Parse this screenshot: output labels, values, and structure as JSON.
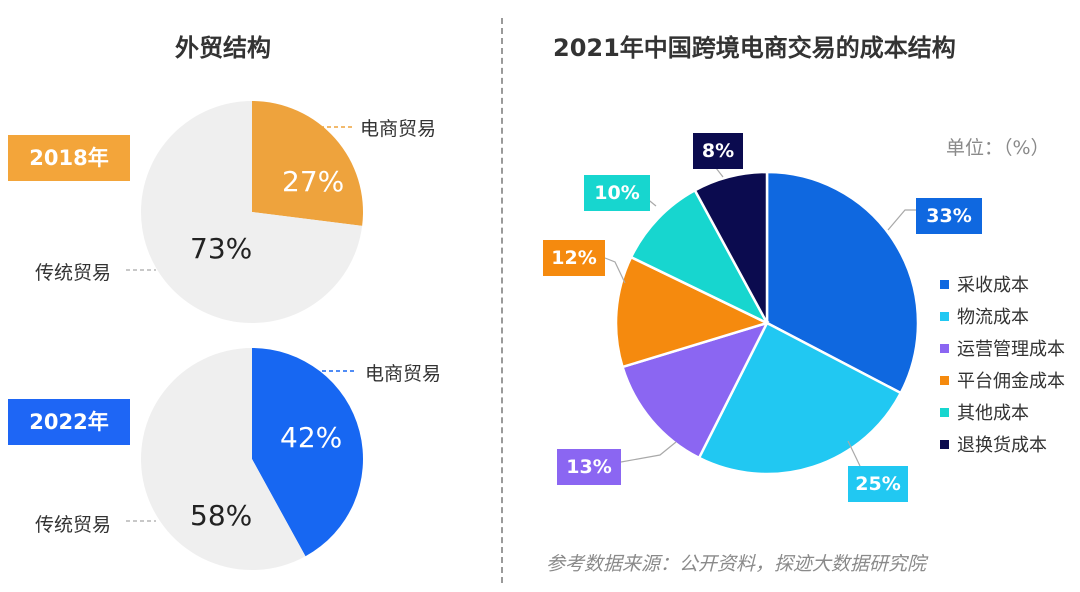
{
  "left": {
    "title": "外贸结构",
    "charts": [
      {
        "year": "2018年",
        "badge_color": "#F3A53A",
        "ecommerce_label": "电商贸易",
        "traditional_label": "传统贸易",
        "ecommerce_pct_label": "27%",
        "traditional_pct_label": "73%",
        "ecommerce_color": "#EEA33D",
        "traditional_color": "#EFEFEF"
      },
      {
        "year": "2022年",
        "badge_color": "#1E66F5",
        "ecommerce_label": "电商贸易",
        "traditional_label": "传统贸易",
        "ecommerce_pct_label": "42%",
        "traditional_pct_label": "58%",
        "ecommerce_color": "#1767F2",
        "traditional_color": "#EFEFEF"
      }
    ]
  },
  "right": {
    "title": "2021年中国跨境电商交易的成本结构",
    "unit": "单位：（%）",
    "source": "参考数据来源：公开资料，探迹大数据研究院"
  },
  "chart_data": [
    {
      "type": "pie",
      "title": "2018年",
      "categories": [
        "电商贸易",
        "传统贸易"
      ],
      "values": [
        27,
        73
      ],
      "colors": [
        "#EEA33D",
        "#EFEFEF"
      ]
    },
    {
      "type": "pie",
      "title": "2022年",
      "categories": [
        "电商贸易",
        "传统贸易"
      ],
      "values": [
        42,
        58
      ],
      "colors": [
        "#1767F2",
        "#EFEFEF"
      ]
    },
    {
      "type": "pie",
      "title": "2021年中国跨境电商交易的成本结构",
      "categories": [
        "采收成本",
        "物流成本",
        "运营管理成本",
        "平台佣金成本",
        "其他成本",
        "退换货成本"
      ],
      "values": [
        33,
        25,
        13,
        12,
        10,
        8
      ],
      "labels": [
        "33%",
        "25%",
        "13%",
        "12%",
        "10%",
        "8%"
      ],
      "colors": [
        "#0F68E0",
        "#21C8F2",
        "#8B66F2",
        "#F58A0E",
        "#17D6CF",
        "#0B0B4F"
      ],
      "legend": "right"
    }
  ]
}
